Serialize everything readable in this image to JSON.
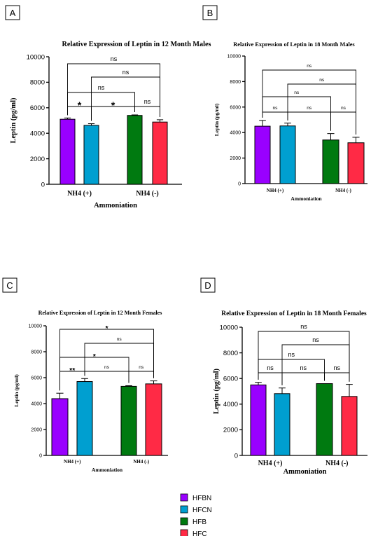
{
  "legend": [
    {
      "label": "HFBN",
      "color": "#9900FF"
    },
    {
      "label": "HFCN",
      "color": "#009FD0"
    },
    {
      "label": "HFB",
      "color": "#007A10"
    },
    {
      "label": "HFC",
      "color": "#FF2A45"
    }
  ],
  "chart_data": [
    {
      "panel": "A",
      "type": "bar",
      "title": "Relative Expression of Leptin in 12 Month Males",
      "xlabel": "Ammoniation",
      "ylabel": "Leptin (pg/ml)",
      "ylim": [
        0,
        10000
      ],
      "yticks": [
        "0",
        "2000",
        "4000",
        "6000",
        "8000",
        "10000"
      ],
      "categories": [
        "NH4 (+)",
        "NH4 (-)"
      ],
      "series": [
        {
          "name": "HFBN",
          "values": [
            5100,
            null
          ],
          "errors": [
            100,
            null
          ]
        },
        {
          "name": "HFCN",
          "values": [
            4620,
            null
          ],
          "errors": [
            130,
            null
          ]
        },
        {
          "name": "HFB",
          "values": [
            null,
            5400
          ],
          "errors": [
            null,
            40
          ]
        },
        {
          "name": "HFC",
          "values": [
            null,
            4880
          ],
          "errors": [
            null,
            180
          ]
        }
      ],
      "comparisons": [
        {
          "from": "HFBN",
          "to": "HFC",
          "label": "ns"
        },
        {
          "from": "HFCN",
          "to": "HFC",
          "label": "ns"
        },
        {
          "from": "HFBN",
          "to": "HFB",
          "label": "ns"
        },
        {
          "from": "HFBN",
          "to": "HFCN",
          "label": "*"
        },
        {
          "from": "HFCN",
          "to": "HFB",
          "label": "*"
        },
        {
          "from": "HFB",
          "to": "HFC",
          "label": "ns"
        }
      ]
    },
    {
      "panel": "B",
      "type": "bar",
      "title": "Relative Expression of Leptin in 18 Month Males",
      "xlabel": "Ammoniation",
      "ylabel": "Leptin (pg/ml)",
      "ylim": [
        0,
        10000
      ],
      "yticks": [
        "0",
        "2000",
        "4000",
        "6000",
        "8000",
        "10000"
      ],
      "categories": [
        "NH4 (+)",
        "NH4 (-)"
      ],
      "series": [
        {
          "name": "HFBN",
          "values": [
            4500,
            null
          ],
          "errors": [
            450,
            null
          ]
        },
        {
          "name": "HFCN",
          "values": [
            4520,
            null
          ],
          "errors": [
            220,
            null
          ]
        },
        {
          "name": "HFB",
          "values": [
            null,
            3420
          ],
          "errors": [
            null,
            500
          ]
        },
        {
          "name": "HFC",
          "values": [
            null,
            3200
          ],
          "errors": [
            null,
            430
          ]
        }
      ],
      "comparisons": [
        {
          "from": "HFBN",
          "to": "HFC",
          "label": "ns"
        },
        {
          "from": "HFCN",
          "to": "HFC",
          "label": "ns"
        },
        {
          "from": "HFBN",
          "to": "HFB",
          "label": "ns"
        },
        {
          "from": "HFBN",
          "to": "HFCN",
          "label": "ns"
        },
        {
          "from": "HFCN",
          "to": "HFB",
          "label": "ns"
        },
        {
          "from": "HFB",
          "to": "HFC",
          "label": "ns"
        }
      ]
    },
    {
      "panel": "C",
      "type": "bar",
      "title": "Relative Expression of Leptin in 12 Month Females",
      "xlabel": "Ammoniation",
      "ylabel": "Leptin (pg/ml)",
      "ylim": [
        0,
        10000
      ],
      "yticks": [
        "0",
        "2000",
        "4000",
        "6000",
        "8000",
        "10000"
      ],
      "categories": [
        "NH4 (+)",
        "NH4 (-)"
      ],
      "series": [
        {
          "name": "HFBN",
          "values": [
            4380,
            null
          ],
          "errors": [
            420,
            null
          ]
        },
        {
          "name": "HFCN",
          "values": [
            5700,
            null
          ],
          "errors": [
            230,
            null
          ]
        },
        {
          "name": "HFB",
          "values": [
            null,
            5330
          ],
          "errors": [
            null,
            50
          ]
        },
        {
          "name": "HFC",
          "values": [
            null,
            5520
          ],
          "errors": [
            null,
            230
          ]
        }
      ],
      "comparisons": [
        {
          "from": "HFBN",
          "to": "HFC",
          "label": "*"
        },
        {
          "from": "HFCN",
          "to": "HFC",
          "label": "ns"
        },
        {
          "from": "HFBN",
          "to": "HFB",
          "label": "*"
        },
        {
          "from": "HFBN",
          "to": "HFCN",
          "label": "**"
        },
        {
          "from": "HFCN",
          "to": "HFB",
          "label": "ns"
        },
        {
          "from": "HFB",
          "to": "HFC",
          "label": "ns"
        }
      ]
    },
    {
      "panel": "D",
      "type": "bar",
      "title": "Relative Expression of Leptin in 18 Month Females",
      "xlabel": "Ammoniation",
      "ylabel": "Leptin (pg/ml)",
      "ylim": [
        0,
        10000
      ],
      "yticks": [
        "0",
        "2000",
        "4000",
        "6000",
        "8000",
        "10000"
      ],
      "categories": [
        "NH4 (+)",
        "NH4 (-)"
      ],
      "series": [
        {
          "name": "HFBN",
          "values": [
            5500,
            null
          ],
          "errors": [
            200,
            null
          ]
        },
        {
          "name": "HFCN",
          "values": [
            4820,
            null
          ],
          "errors": [
            440,
            null
          ]
        },
        {
          "name": "HFB",
          "values": [
            null,
            5600
          ],
          "errors": [
            null,
            0
          ]
        },
        {
          "name": "HFC",
          "values": [
            null,
            4600
          ],
          "errors": [
            null,
            940
          ]
        }
      ],
      "comparisons": [
        {
          "from": "HFBN",
          "to": "HFC",
          "label": "ns"
        },
        {
          "from": "HFCN",
          "to": "HFC",
          "label": "ns"
        },
        {
          "from": "HFBN",
          "to": "HFB",
          "label": "ns"
        },
        {
          "from": "HFBN",
          "to": "HFCN",
          "label": "ns"
        },
        {
          "from": "HFCN",
          "to": "HFB",
          "label": "ns"
        },
        {
          "from": "HFB",
          "to": "HFC",
          "label": "ns"
        }
      ]
    }
  ]
}
